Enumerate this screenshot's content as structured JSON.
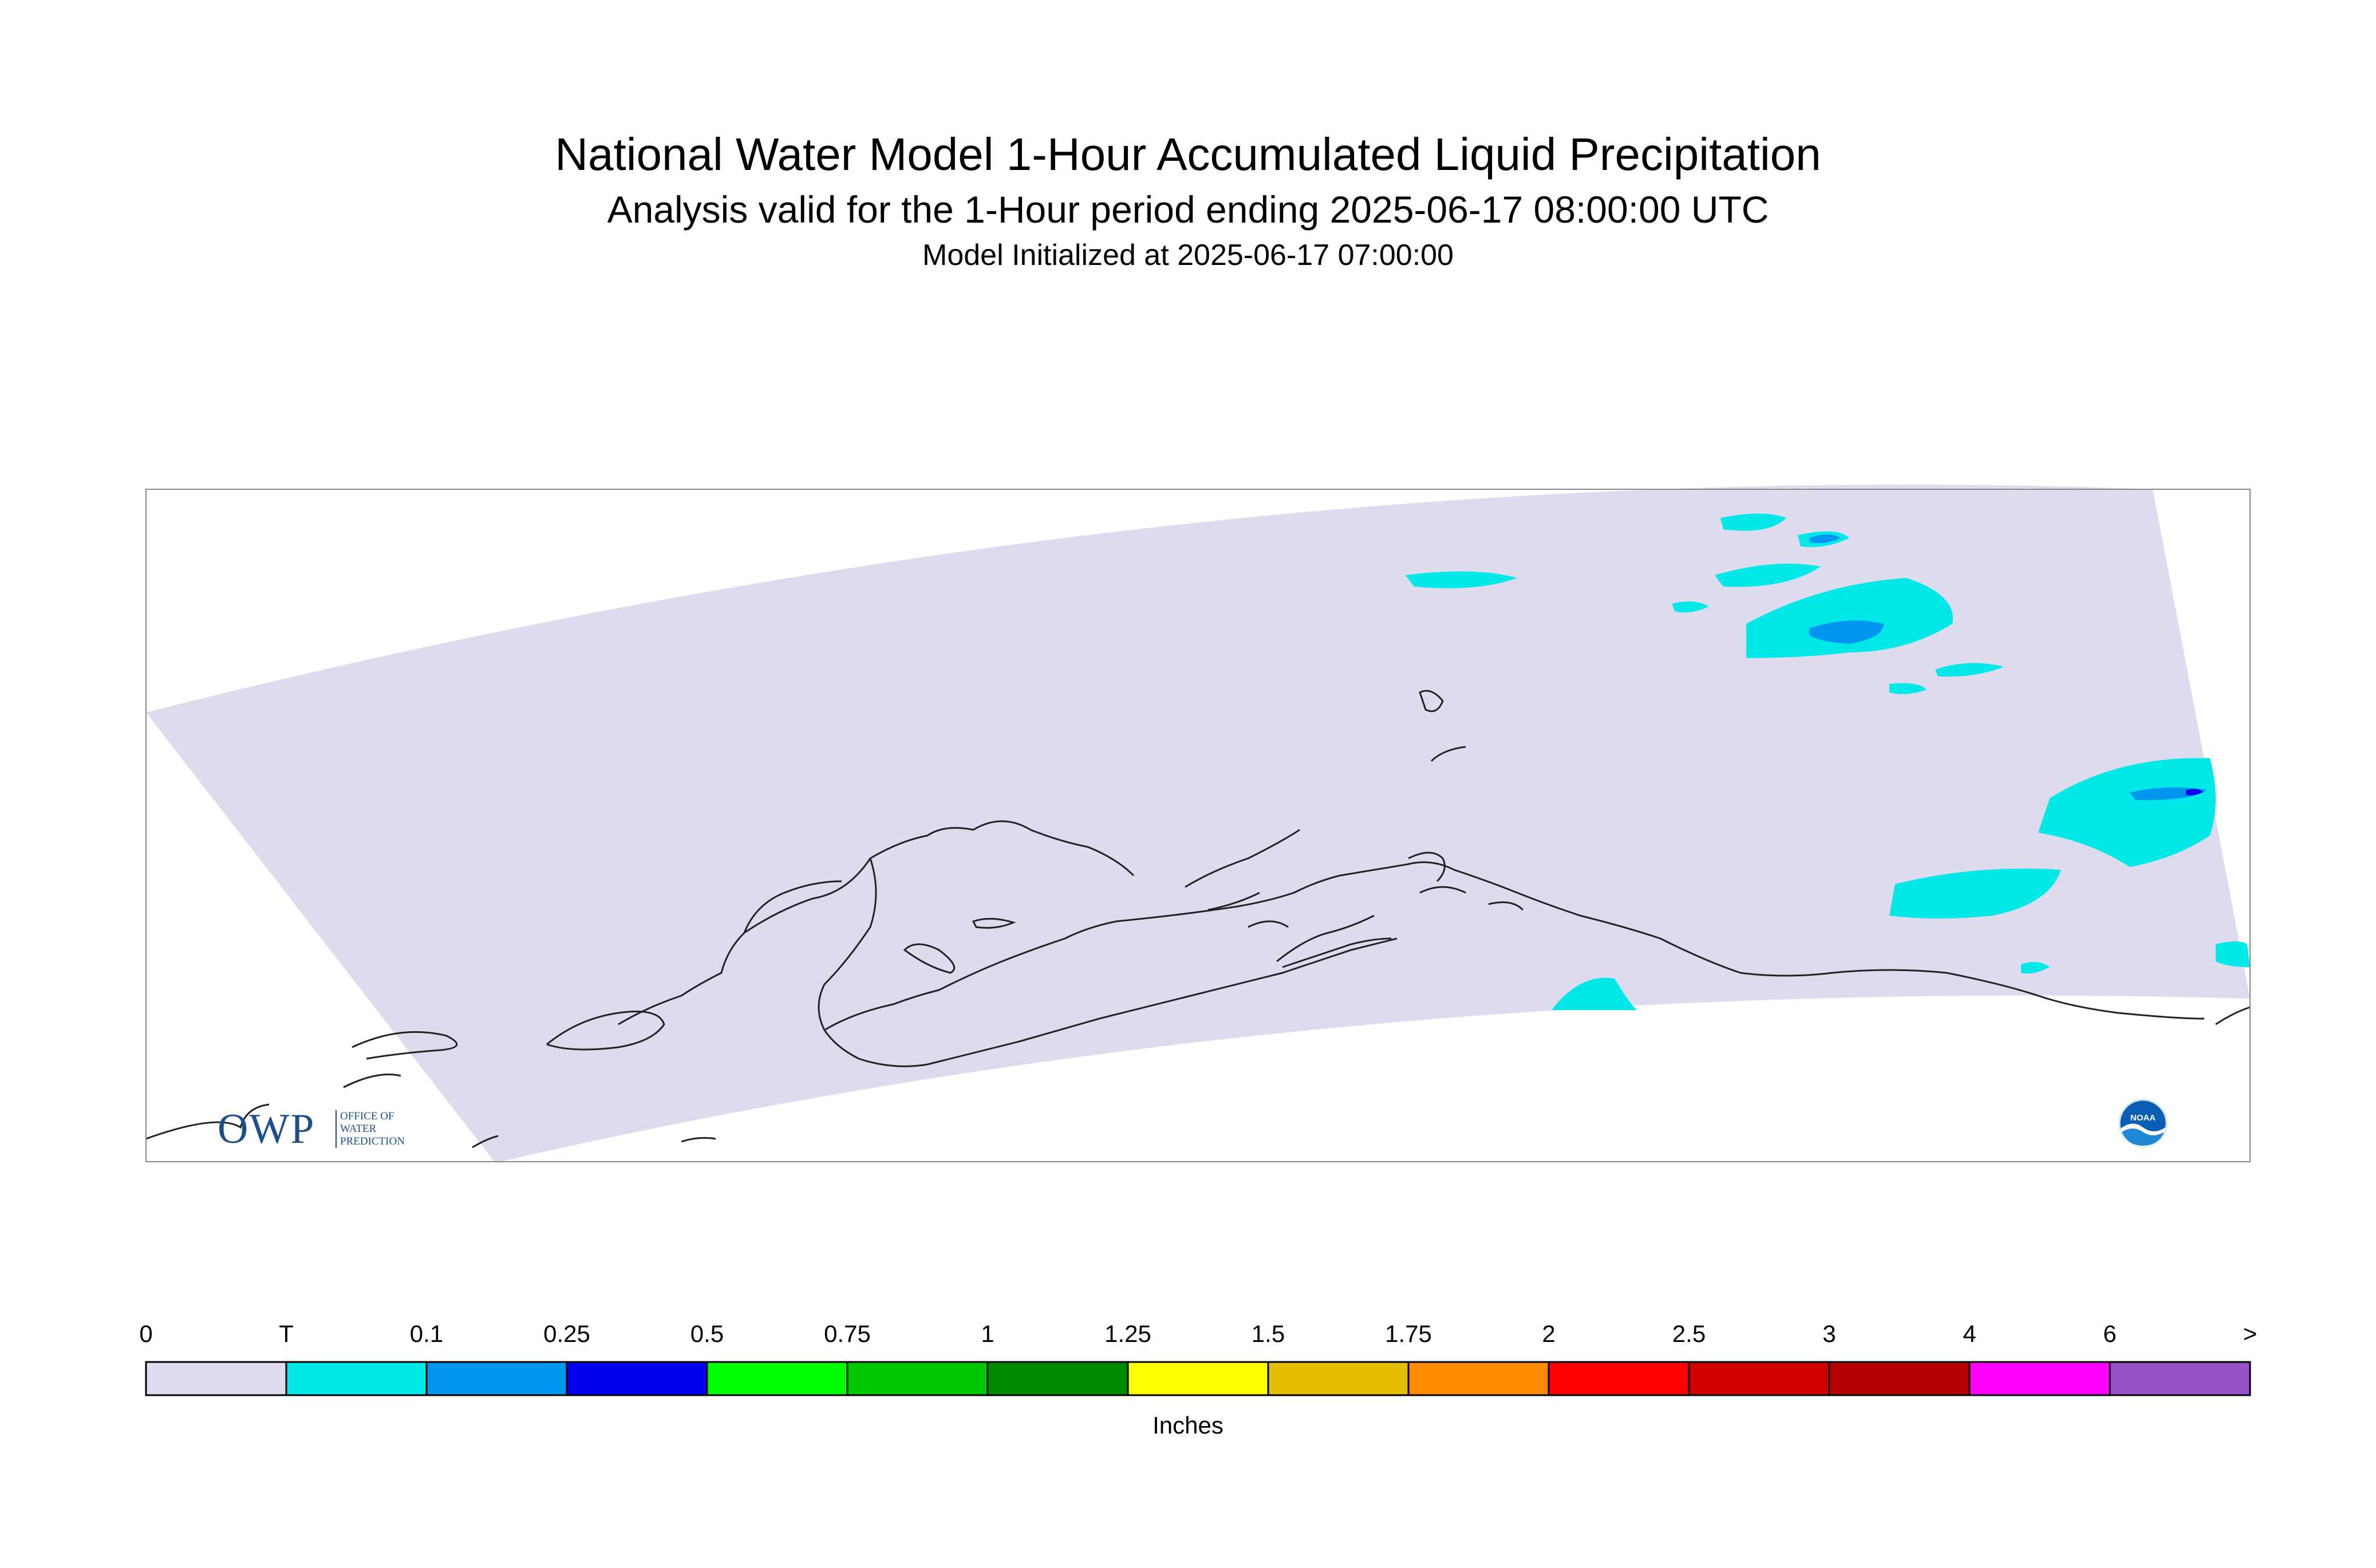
{
  "header": {
    "title": "National Water Model 1-Hour Accumulated Liquid Precipitation",
    "subtitle": "Analysis valid for the 1-Hour period ending 2025-06-17 08:00:00 UTC",
    "initialized": "Model Initialized at 2025-06-17 07:00:00"
  },
  "legend": {
    "units": "Inches",
    "labels": [
      "0",
      "T",
      "0.1",
      "0.25",
      "0.5",
      "0.75",
      "1",
      "1.25",
      "1.5",
      "1.75",
      "2",
      "2.5",
      "3",
      "4",
      "6",
      ">"
    ],
    "colors": [
      "#dcdcee",
      "#00e8e8",
      "#0096f0",
      "#0000f0",
      "#00ff00",
      "#00c800",
      "#008c00",
      "#ffff00",
      "#e6be00",
      "#ff8c00",
      "#ff0000",
      "#d20000",
      "#b40000",
      "#ff00ff",
      "#9650c8"
    ]
  },
  "map": {
    "background_color": "#dcdcee",
    "coastline_color": "#222222",
    "precip_trace_color": "#00e8e8",
    "precip_light_color": "#0096f0",
    "precip_moderate_color": "#0000f0"
  },
  "logos": {
    "owp_letters": "OWP",
    "owp_subtext": "OFFICE OF\nWATER\nPREDICTION",
    "noaa_text": "NOAA"
  }
}
